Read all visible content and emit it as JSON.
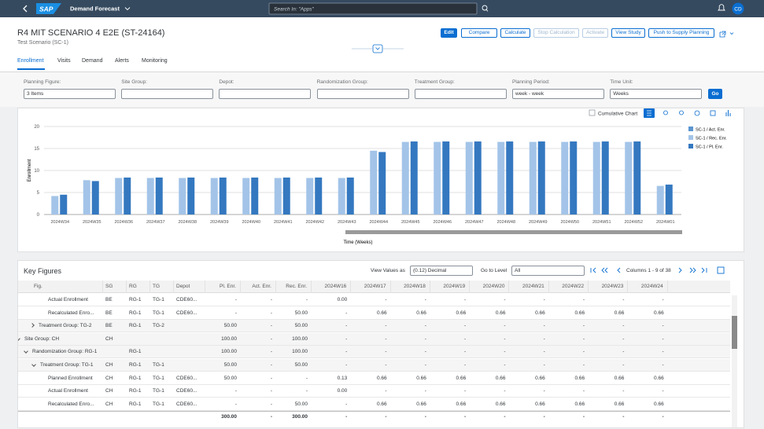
{
  "shell": {
    "logo": "SAP",
    "title": "Demand Forecast",
    "search": "Search In: \"Apps\"",
    "avatar": "CD"
  },
  "header": {
    "title": "R4 MIT SCENARIO 4 E2E (ST-24164)",
    "subtitle": "Test Scenario (SC-1)",
    "buttons": [
      "Edit",
      "Compare",
      "Calculate",
      "Stop Calculation",
      "Activate",
      "View Study",
      "Push to Supply Planning"
    ]
  },
  "tabs": [
    "Enrollment",
    "Visits",
    "Demand",
    "Alerts",
    "Monitoring"
  ],
  "filters": [
    {
      "label": "Planning Figure:",
      "value": "3 Items"
    },
    {
      "label": "Site Group:"
    },
    {
      "label": "Depot:"
    },
    {
      "label": "Randomization Group:"
    },
    {
      "label": "Treatment Group:"
    },
    {
      "label": "Planning Period:",
      "value": "week - week"
    },
    {
      "label": "Time Unit:",
      "value": "Weeks"
    }
  ],
  "go": "Go",
  "chart_toolbar": {
    "checkbox": "Cumulative Chart"
  },
  "chart_data": {
    "type": "bar",
    "y_label": "Enrollment",
    "x_label": "Time (Weeks)",
    "categories": [
      "2024W34",
      "2024W35",
      "2024W36",
      "2024W37",
      "2024W38",
      "2024W39",
      "2024W40",
      "2024W41",
      "2024W42",
      "2024W43",
      "2024W44",
      "2024W45",
      "2024W46",
      "2024W47",
      "2024W48",
      "2024W49",
      "2024W50",
      "2024W51",
      "2024W52",
      "2024W01"
    ],
    "series": [
      {
        "name": "SC-1 / Act. Enr.",
        "color": "#5b95d0",
        "values": [
          0,
          0,
          0,
          0,
          0,
          0,
          0,
          0,
          0,
          0,
          0,
          0,
          0,
          0,
          0,
          0,
          0,
          0,
          0,
          0
        ]
      },
      {
        "name": "SC-1 / Rec. Enr.",
        "color": "#a3c4e8",
        "values": [
          4.2,
          7.8,
          8.3,
          8.3,
          8.3,
          8.3,
          8.3,
          8.3,
          8.3,
          8.3,
          14.5,
          16.5,
          16.5,
          16.5,
          16.5,
          16.5,
          16.5,
          16.5,
          16.5,
          6.5
        ]
      },
      {
        "name": "SC-1 / Pl. Enr.",
        "color": "#3478c0",
        "values": [
          4.5,
          7.6,
          8.4,
          8.4,
          8.4,
          8.4,
          8.4,
          8.4,
          8.4,
          8.4,
          14.2,
          16.6,
          16.6,
          16.6,
          16.6,
          16.6,
          16.6,
          16.6,
          16.6,
          6.8
        ]
      }
    ],
    "ylim": [
      0,
      20
    ],
    "yticks": [
      0,
      5,
      10,
      15,
      20
    ],
    "grid": true,
    "legend": "right"
  },
  "key_figures": {
    "title": "Key Figures",
    "view_label": "View Values as",
    "view_value": "(0.12) Decimal",
    "level_label": "Go to Level",
    "level_value": "All",
    "columns_info": "Columns 1 - 9 of 38",
    "table": {
      "columns": [
        "Fig.",
        "SG",
        "RG",
        "TG",
        "Depot",
        "Pl. Enr.",
        "Act. Enr.",
        "Rec. Enr.",
        "2024W16",
        "2024W17",
        "2024W18",
        "2024W19",
        "2024W20",
        "2024W21",
        "2024W22",
        "2024W23",
        "2024W24"
      ],
      "rows": [
        [
          "Actual Enrollment",
          "BE",
          "RG-1",
          "TG-1",
          "CDE60...",
          "-",
          "-",
          "-",
          "0.00",
          "-",
          "-",
          "-",
          "-",
          "-",
          "-",
          "-",
          "-"
        ],
        [
          "Recalculated Enro...",
          "BE",
          "RG-1",
          "TG-1",
          "CDE60...",
          "-",
          "-",
          "50.00",
          "-",
          "0.66",
          "0.66",
          "0.66",
          "0.66",
          "0.66",
          "0.66",
          "0.66",
          "0.66"
        ],
        [
          "Treatment Group: TG-2",
          "BE",
          "RG-1",
          "TG-2",
          null,
          "50.00",
          "-",
          "50.00",
          "-",
          "-",
          "-",
          "-",
          "-",
          "-",
          "-",
          "-",
          "-"
        ],
        [
          "Site Group: CH",
          "CH",
          null,
          null,
          null,
          "100.00",
          "-",
          "100.00",
          "-",
          "-",
          "-",
          "-",
          "-",
          "-",
          "-",
          "-",
          "-"
        ],
        [
          "Randomization Group: RG-1",
          null,
          "RG-1",
          null,
          null,
          "100.00",
          "-",
          "100.00",
          "-",
          "-",
          "-",
          "-",
          "-",
          "-",
          "-",
          "-",
          "-"
        ],
        [
          "Treatment Group: TG-1",
          "CH",
          "RG-1",
          "TG-1",
          null,
          "50.00",
          "-",
          "50.00",
          "-",
          "-",
          "-",
          "-",
          "-",
          "-",
          "-",
          "-",
          "-"
        ],
        [
          "Planned Enrollment",
          "CH",
          "RG-1",
          "TG-1",
          "CDE60...",
          "50.00",
          "-",
          "-",
          "0.13",
          "0.66",
          "0.66",
          "0.66",
          "0.66",
          "0.66",
          "0.66",
          "0.66",
          "0.66"
        ],
        [
          "Actual Enrollment",
          "CH",
          "RG-1",
          "TG-1",
          "CDE60...",
          "-",
          "-",
          "-",
          "0.00",
          "-",
          "-",
          "-",
          "-",
          "-",
          "-",
          "-",
          "-"
        ],
        [
          "Recalculated Enro...",
          "CH",
          "RG-1",
          "TG-1",
          "CDE60...",
          "-",
          "-",
          "50.00",
          "-",
          "0.66",
          "0.66",
          "0.66",
          "0.66",
          "0.66",
          "0.66",
          "0.66",
          "0.66"
        ]
      ],
      "footer": [
        null,
        null,
        null,
        null,
        null,
        "300.00",
        "-",
        "300.00",
        "-",
        "-",
        "-",
        "-",
        "-",
        "-",
        "-",
        "-",
        "-"
      ]
    }
  }
}
